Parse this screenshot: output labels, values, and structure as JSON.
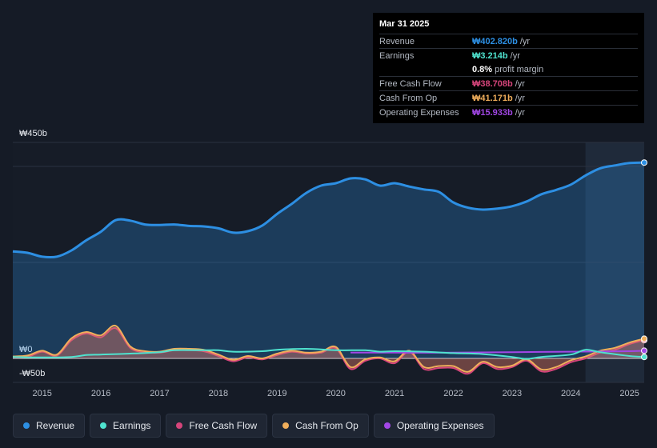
{
  "tooltip": {
    "date": "Mar 31 2025",
    "rows": [
      {
        "label": "Revenue",
        "value": "₩402.820b",
        "unit": "/yr",
        "color": "#2d8fe3"
      },
      {
        "label": "Earnings",
        "value": "₩3.214b",
        "unit": "/yr",
        "color": "#4fe3cf"
      },
      {
        "label": "",
        "value": "0.8%",
        "unit": "profit margin",
        "color": "#ffffff"
      },
      {
        "label": "Free Cash Flow",
        "value": "₩38.708b",
        "unit": "/yr",
        "color": "#d6457b"
      },
      {
        "label": "Cash From Op",
        "value": "₩41.171b",
        "unit": "/yr",
        "color": "#f0ae5b"
      },
      {
        "label": "Operating Expenses",
        "value": "₩15.933b",
        "unit": "/yr",
        "color": "#a247e6"
      }
    ]
  },
  "legend": [
    {
      "label": "Revenue",
      "color": "#2d8fe3"
    },
    {
      "label": "Earnings",
      "color": "#4fe3cf"
    },
    {
      "label": "Free Cash Flow",
      "color": "#d6457b"
    },
    {
      "label": "Cash From Op",
      "color": "#f0ae5b"
    },
    {
      "label": "Operating Expenses",
      "color": "#a247e6"
    }
  ],
  "chart_data": {
    "type": "area",
    "title": "",
    "xlabel": "",
    "ylabel": "",
    "xlim": [
      2014.5,
      2025.25
    ],
    "ylim": [
      -50,
      450
    ],
    "y_tick_labels": [
      {
        "value": 450,
        "label": "₩450b"
      },
      {
        "value": 0,
        "label": "₩0"
      },
      {
        "value": -50,
        "label": "-₩50b"
      }
    ],
    "x_tick_labels": [
      "2015",
      "2016",
      "2017",
      "2018",
      "2019",
      "2020",
      "2021",
      "2022",
      "2023",
      "2024",
      "2025"
    ],
    "highlight_from": 2024.25,
    "series": [
      {
        "name": "Revenue",
        "color": "#2d8fe3",
        "fill": true,
        "x": [
          2014.5,
          2014.75,
          2015.0,
          2015.25,
          2015.5,
          2015.75,
          2016.0,
          2016.25,
          2016.5,
          2016.75,
          2017.0,
          2017.25,
          2017.5,
          2017.75,
          2018.0,
          2018.25,
          2018.5,
          2018.75,
          2019.0,
          2019.25,
          2019.5,
          2019.75,
          2020.0,
          2020.25,
          2020.5,
          2020.75,
          2021.0,
          2021.25,
          2021.5,
          2021.75,
          2022.0,
          2022.25,
          2022.5,
          2022.75,
          2023.0,
          2023.25,
          2023.5,
          2023.75,
          2024.0,
          2024.25,
          2024.5,
          2024.75,
          2025.0,
          2025.25
        ],
        "values": [
          223,
          220,
          212,
          212,
          225,
          246,
          264,
          288,
          287,
          279,
          278,
          279,
          276,
          275,
          271,
          262,
          265,
          277,
          301,
          322,
          345,
          360,
          365,
          375,
          373,
          360,
          365,
          358,
          352,
          347,
          325,
          314,
          310,
          312,
          317,
          327,
          342,
          351,
          362,
          381,
          396,
          402,
          407,
          408
        ]
      },
      {
        "name": "Earnings",
        "color": "#4fe3cf",
        "fill": false,
        "x": [
          2014.5,
          2015.0,
          2015.5,
          2015.75,
          2016.0,
          2016.5,
          2017.0,
          2017.25,
          2017.75,
          2018.0,
          2018.25,
          2018.75,
          2019.0,
          2019.5,
          2020.0,
          2020.5,
          2020.75,
          2021.0,
          2021.5,
          2022.0,
          2022.5,
          2023.0,
          2023.25,
          2023.5,
          2024.0,
          2024.25,
          2024.5,
          2025.0,
          2025.25
        ],
        "values": [
          3,
          2,
          3,
          7,
          8,
          10,
          13,
          17,
          17,
          17,
          14,
          15,
          18,
          20,
          17,
          17,
          14,
          15,
          14,
          11,
          9,
          3,
          -1,
          3,
          8,
          18,
          13,
          5,
          3
        ]
      },
      {
        "name": "Free Cash Flow",
        "color": "#d6457b",
        "fill": true,
        "x": [
          2014.5,
          2014.75,
          2015.0,
          2015.25,
          2015.5,
          2015.75,
          2016.0,
          2016.25,
          2016.5,
          2016.75,
          2017.0,
          2017.25,
          2017.5,
          2017.75,
          2018.0,
          2018.25,
          2018.5,
          2018.75,
          2019.0,
          2019.25,
          2019.5,
          2019.75,
          2020.0,
          2020.25,
          2020.5,
          2020.75,
          2021.0,
          2021.25,
          2021.5,
          2021.75,
          2022.0,
          2022.25,
          2022.5,
          2022.75,
          2023.0,
          2023.25,
          2023.5,
          2023.75,
          2024.0,
          2024.25,
          2024.5,
          2024.75,
          2025.0,
          2025.25
        ],
        "values": [
          2,
          3,
          14,
          6,
          38,
          52,
          44,
          63,
          22,
          13,
          12,
          17,
          17,
          15,
          5,
          -6,
          2,
          -2,
          7,
          14,
          10,
          12,
          21,
          -22,
          -5,
          0,
          -10,
          14,
          -22,
          -20,
          -20,
          -32,
          -10,
          -22,
          -18,
          -5,
          -27,
          -22,
          -8,
          0,
          12,
          18,
          30,
          38
        ]
      },
      {
        "name": "Cash From Op",
        "color": "#f0ae5b",
        "fill": true,
        "x": [
          2014.5,
          2014.75,
          2015.0,
          2015.25,
          2015.5,
          2015.75,
          2016.0,
          2016.25,
          2016.5,
          2016.75,
          2017.0,
          2017.25,
          2017.5,
          2017.75,
          2018.0,
          2018.25,
          2018.5,
          2018.75,
          2019.0,
          2019.25,
          2019.5,
          2019.75,
          2020.0,
          2020.25,
          2020.5,
          2020.75,
          2021.0,
          2021.25,
          2021.5,
          2021.75,
          2022.0,
          2022.25,
          2022.5,
          2022.75,
          2023.0,
          2023.25,
          2023.5,
          2023.75,
          2024.0,
          2024.25,
          2024.5,
          2024.75,
          2025.0,
          2025.25
        ],
        "values": [
          4,
          6,
          16,
          8,
          42,
          55,
          48,
          68,
          25,
          15,
          14,
          20,
          20,
          18,
          8,
          -3,
          5,
          0,
          10,
          16,
          12,
          14,
          24,
          -18,
          -2,
          2,
          -6,
          16,
          -18,
          -16,
          -16,
          -28,
          -7,
          -18,
          -15,
          -2,
          -23,
          -18,
          -4,
          4,
          16,
          22,
          33,
          41
        ]
      },
      {
        "name": "Operating Expenses",
        "color": "#a247e6",
        "fill": false,
        "x": [
          2020.25,
          2021.0,
          2022.0,
          2023.0,
          2024.0,
          2025.0,
          2025.25
        ],
        "values": [
          12,
          12,
          12,
          13,
          14,
          15,
          16
        ]
      }
    ]
  }
}
